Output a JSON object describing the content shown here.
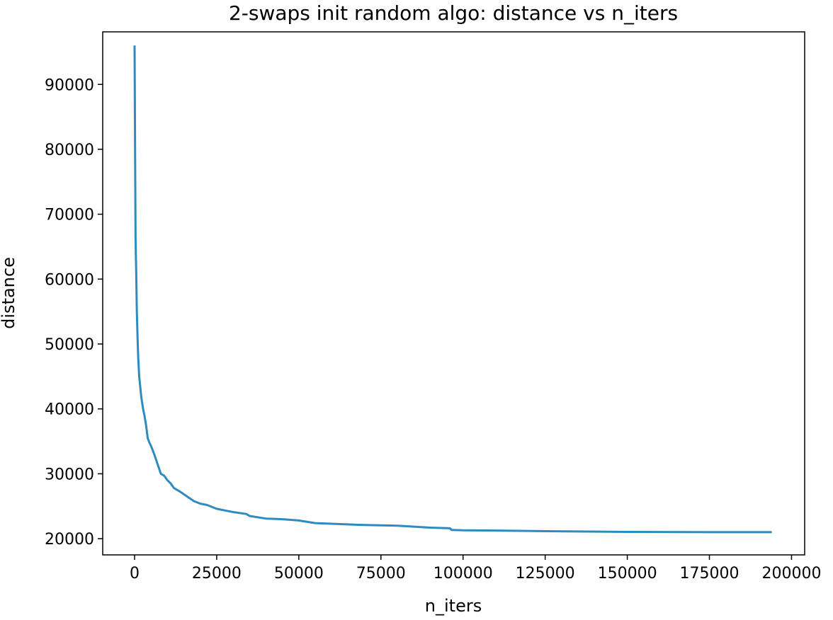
{
  "chart_data": {
    "type": "line",
    "title": "2-swaps init random algo: distance vs n_iters",
    "xlabel": "n_iters",
    "ylabel": "distance",
    "xlim": [
      -9700,
      204000
    ],
    "ylim": [
      17500,
      98100
    ],
    "xticks": [
      0,
      25000,
      50000,
      75000,
      100000,
      125000,
      150000,
      175000,
      200000
    ],
    "xtick_labels": [
      "0",
      "25000",
      "50000",
      "75000",
      "100000",
      "125000",
      "150000",
      "175000",
      "200000"
    ],
    "yticks": [
      20000,
      30000,
      40000,
      50000,
      60000,
      70000,
      80000,
      90000
    ],
    "ytick_labels": [
      "20000",
      "30000",
      "40000",
      "50000",
      "60000",
      "70000",
      "80000",
      "90000"
    ],
    "grid": false,
    "series": [
      {
        "color": "#2e8bc0",
        "x": [
          0,
          150,
          300,
          500,
          700,
          900,
          1100,
          1400,
          1700,
          2000,
          2300,
          2600,
          3000,
          3500,
          4000,
          4500,
          5000,
          6000,
          7000,
          8000,
          9000,
          10000,
          11000,
          12000,
          14000,
          16000,
          18000,
          20000,
          22000,
          25000,
          28000,
          30000,
          34000,
          35000,
          40000,
          45000,
          50000,
          55000,
          60000,
          70000,
          80000,
          90000,
          96000,
          96500,
          100000,
          110000,
          125000,
          150000,
          175000,
          194000
        ],
        "y": [
          96000,
          80000,
          66000,
          61000,
          55000,
          51000,
          48000,
          45000,
          43500,
          42000,
          41000,
          40000,
          39000,
          37500,
          35500,
          34800,
          34300,
          33000,
          31500,
          30000,
          29700,
          29000,
          28500,
          27800,
          27200,
          26500,
          25800,
          25400,
          25200,
          24600,
          24300,
          24100,
          23800,
          23500,
          23100,
          23000,
          22800,
          22400,
          22300,
          22100,
          22000,
          21700,
          21600,
          21350,
          21300,
          21250,
          21150,
          21050,
          21000,
          21000
        ]
      }
    ]
  }
}
